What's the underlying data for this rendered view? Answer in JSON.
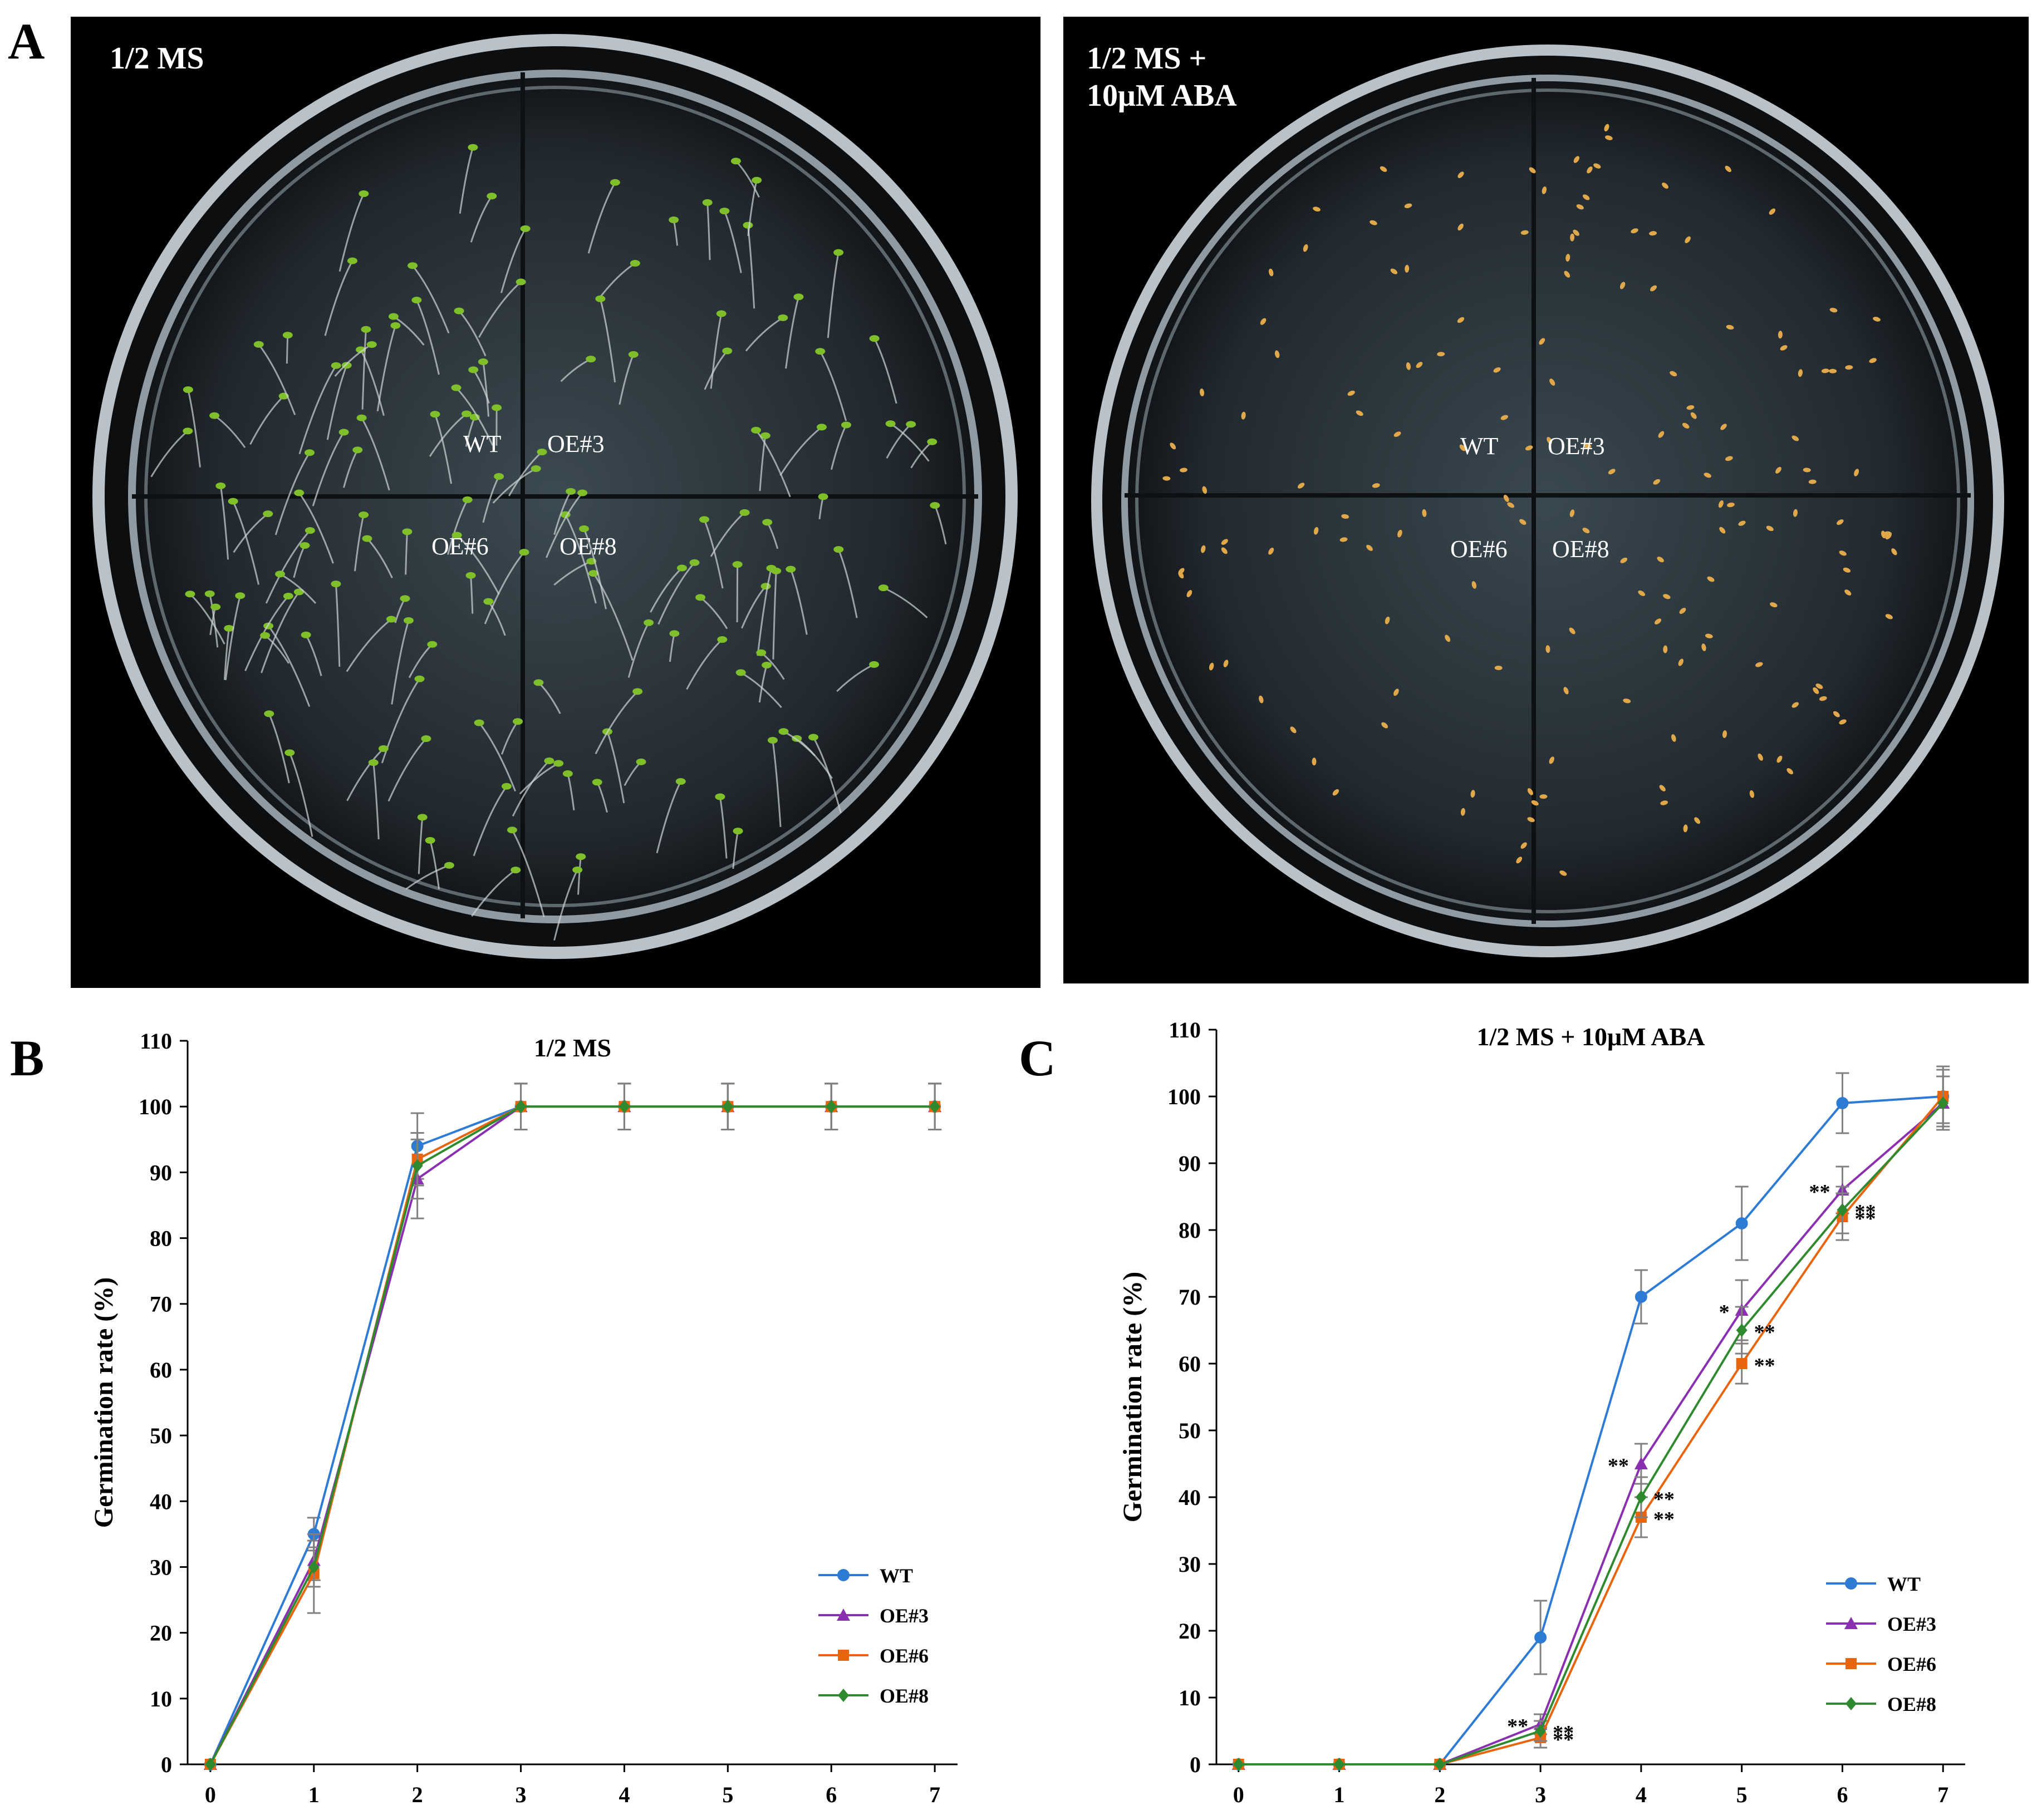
{
  "panel_a": {
    "letter": "A",
    "plates": [
      {
        "title": "1/2 MS",
        "labels": [
          "WT",
          "OE#3",
          "OE#6",
          "OE#8"
        ]
      },
      {
        "title": "1/2 MS +\n10μM ABA",
        "labels": [
          "WT",
          "OE#3",
          "OE#6",
          "OE#8"
        ]
      }
    ]
  },
  "colors": {
    "WT": "#2e7bd6",
    "OE#3": "#8a2fb0",
    "OE#6": "#e8650e",
    "OE#8": "#2f8a2f",
    "error_bar": "#808080"
  },
  "chart_data": [
    {
      "letter": "B",
      "type": "line",
      "title": "1/2 MS",
      "xlabel": "",
      "ylabel": "Germination rate (%)",
      "x": [
        0,
        1,
        2,
        3,
        4,
        5,
        6,
        7
      ],
      "xlim": [
        0,
        7
      ],
      "ylim": [
        0,
        110
      ],
      "yticks": [
        0,
        10,
        20,
        30,
        40,
        50,
        60,
        70,
        80,
        90,
        100,
        110
      ],
      "grid": false,
      "legend": "bottom-right",
      "series": [
        {
          "name": "WT",
          "marker": "circle",
          "values": [
            0,
            35,
            94,
            100,
            100,
            100,
            100,
            100
          ],
          "errors": [
            0,
            2.5,
            5,
            3.5,
            3.5,
            3.5,
            3.5,
            3.5
          ],
          "annotations": []
        },
        {
          "name": "OE#3",
          "marker": "triangle",
          "values": [
            0,
            31,
            89,
            100,
            100,
            100,
            100,
            100
          ],
          "errors": [
            0,
            3,
            6,
            3.5,
            3.5,
            3.5,
            3.5,
            3.5
          ],
          "annotations": []
        },
        {
          "name": "OE#6",
          "marker": "square",
          "values": [
            0,
            29,
            92,
            100,
            100,
            100,
            100,
            100
          ],
          "errors": [
            0,
            6,
            4,
            3.5,
            3.5,
            3.5,
            3.5,
            3.5
          ],
          "annotations": []
        },
        {
          "name": "OE#8",
          "marker": "diamond",
          "values": [
            0,
            30,
            91,
            100,
            100,
            100,
            100,
            100
          ],
          "errors": [
            0,
            3,
            5,
            3.5,
            3.5,
            3.5,
            3.5,
            3.5
          ],
          "annotations": []
        }
      ]
    },
    {
      "letter": "C",
      "type": "line",
      "title": "1/2 MS + 10μM ABA",
      "xlabel": "",
      "ylabel": "Germination rate (%)",
      "x": [
        0,
        1,
        2,
        3,
        4,
        5,
        6,
        7
      ],
      "xlim": [
        0,
        7
      ],
      "ylim": [
        0,
        110
      ],
      "yticks": [
        0,
        10,
        20,
        30,
        40,
        50,
        60,
        70,
        80,
        90,
        100,
        110
      ],
      "grid": false,
      "legend": "bottom-right",
      "series": [
        {
          "name": "WT",
          "marker": "circle",
          "values": [
            0,
            0,
            0,
            19,
            70,
            81,
            99,
            100
          ],
          "errors": [
            0,
            0,
            0,
            5.5,
            4,
            5.5,
            4.5,
            4.5
          ],
          "annotations": []
        },
        {
          "name": "OE#3",
          "marker": "triangle",
          "values": [
            0,
            0,
            0,
            6,
            45,
            68,
            86,
            99
          ],
          "errors": [
            0,
            0,
            0,
            1.5,
            3,
            4.5,
            3.5,
            4
          ],
          "annotations": [
            {
              "x": 3,
              "text": "**",
              "side": "left"
            },
            {
              "x": 4,
              "text": "**",
              "side": "left"
            },
            {
              "x": 5,
              "text": "*",
              "side": "left"
            },
            {
              "x": 6,
              "text": "**",
              "side": "left"
            }
          ]
        },
        {
          "name": "OE#6",
          "marker": "square",
          "values": [
            0,
            0,
            0,
            4,
            37,
            60,
            82,
            100
          ],
          "errors": [
            0,
            0,
            0,
            1.5,
            3,
            3,
            3.5,
            4
          ],
          "annotations": [
            {
              "x": 3,
              "text": "**",
              "side": "right"
            },
            {
              "x": 4,
              "text": "**",
              "side": "right"
            },
            {
              "x": 5,
              "text": "**",
              "side": "right"
            },
            {
              "x": 6,
              "text": "**",
              "side": "right"
            }
          ]
        },
        {
          "name": "OE#8",
          "marker": "diamond",
          "values": [
            0,
            0,
            0,
            5,
            40,
            65,
            83,
            99
          ],
          "errors": [
            0,
            0,
            0,
            1.5,
            3,
            3.5,
            3.5,
            4
          ],
          "annotations": [
            {
              "x": 3,
              "text": "**",
              "side": "right"
            },
            {
              "x": 4,
              "text": "**",
              "side": "right"
            },
            {
              "x": 5,
              "text": "**",
              "side": "right"
            },
            {
              "x": 6,
              "text": "**",
              "side": "right"
            }
          ]
        }
      ]
    }
  ]
}
